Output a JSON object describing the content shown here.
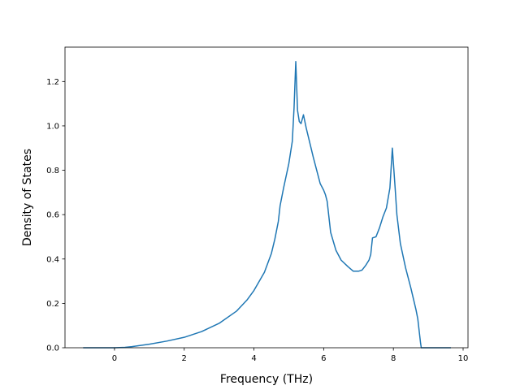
{
  "chart_data": {
    "type": "line",
    "title": "",
    "xlabel": "Frequency (THz)",
    "ylabel": "Density of States",
    "xlim": [
      -1.42,
      10.14
    ],
    "ylim": [
      0.0,
      1.355
    ],
    "xticks": [
      0,
      2,
      4,
      6,
      8,
      10
    ],
    "yticks": [
      0.0,
      0.2,
      0.4,
      0.6,
      0.8,
      1.0,
      1.2
    ],
    "xtick_labels": [
      "0",
      "2",
      "4",
      "6",
      "8",
      "10"
    ],
    "ytick_labels": [
      "0.0",
      "0.2",
      "0.4",
      "0.6",
      "0.8",
      "1.0",
      "1.2"
    ],
    "grid": false,
    "legend": false,
    "line_color": "#1f77b4",
    "series": [
      {
        "x": [
          -0.9,
          -0.5,
          0.0,
          0.3,
          0.5,
          1.0,
          1.5,
          2.0,
          2.5,
          3.0,
          3.5,
          3.8,
          4.0,
          4.3,
          4.5,
          4.6,
          4.7,
          4.75,
          4.85,
          5.0,
          5.1,
          5.15,
          5.2,
          5.25,
          5.3,
          5.35,
          5.42,
          5.5,
          5.7,
          5.9,
          6.0,
          6.05,
          6.1,
          6.2,
          6.35,
          6.5,
          6.7,
          6.85,
          7.0,
          7.1,
          7.2,
          7.3,
          7.35,
          7.4,
          7.5,
          7.6,
          7.7,
          7.8,
          7.9,
          7.97,
          8.05,
          8.1,
          8.2,
          8.35,
          8.5,
          8.65,
          8.7,
          8.78,
          8.8,
          9.0,
          9.3,
          9.65
        ],
        "values": [
          0.0,
          0.0,
          0.0,
          0.002,
          0.005,
          0.016,
          0.03,
          0.047,
          0.073,
          0.11,
          0.165,
          0.215,
          0.258,
          0.34,
          0.425,
          0.49,
          0.57,
          0.64,
          0.72,
          0.83,
          0.93,
          1.08,
          1.29,
          1.07,
          1.02,
          1.01,
          1.05,
          0.99,
          0.86,
          0.74,
          0.71,
          0.69,
          0.66,
          0.52,
          0.44,
          0.395,
          0.365,
          0.345,
          0.345,
          0.35,
          0.37,
          0.395,
          0.42,
          0.495,
          0.5,
          0.54,
          0.59,
          0.63,
          0.72,
          0.9,
          0.72,
          0.6,
          0.47,
          0.36,
          0.27,
          0.17,
          0.13,
          0.02,
          0.0,
          0.0,
          0.0,
          0.0
        ]
      }
    ]
  }
}
